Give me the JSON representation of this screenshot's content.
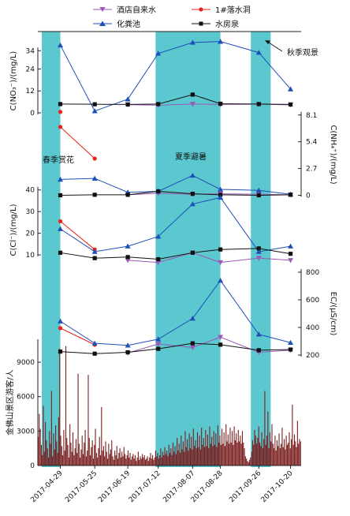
{
  "legend": [
    {
      "name": "酒店自来水",
      "color": "#9b59b6",
      "marker": "tri-down"
    },
    {
      "name": "1#落水洞",
      "color": "#e8231c",
      "marker": "circle"
    },
    {
      "name": "化粪池",
      "color": "#1f4fb8",
      "marker": "tri-up"
    },
    {
      "name": "水房泉",
      "color": "#111111",
      "marker": "square"
    }
  ],
  "annotations": {
    "spring": "春季赏花",
    "summer": "夏季避暑",
    "autumn": "秋季观景"
  },
  "chart_data": {
    "type": "line",
    "x": [
      "2017-04-29",
      "2017-05-25",
      "2017-06-19",
      "2017-07-12",
      "2017-08-07",
      "2017-08-28",
      "2017-09-26",
      "2017-10-20"
    ],
    "seasons": [
      {
        "label": "春季赏花",
        "from": "2017-04-15",
        "to": "2017-04-29"
      },
      {
        "label": "夏季避暑",
        "from": "2017-07-10",
        "to": "2017-08-28"
      },
      {
        "label": "秋季观景",
        "from": "2017-09-20",
        "to": "2017-10-05"
      }
    ],
    "panels": [
      {
        "id": "no3",
        "ylabel": "C(NO₃⁻)/(mg/L)",
        "side": "left",
        "ylim": [
          -3,
          38
        ],
        "ticks": [
          0,
          12,
          24,
          34
        ],
        "series": [
          {
            "name": "酒店自来水",
            "values": [
              null,
              null,
              4.5,
              4.2,
              4.8,
              4.6,
              4.7,
              4.4
            ]
          },
          {
            "name": "1#落水洞",
            "values": [
              0.5,
              null,
              null,
              null,
              null,
              null,
              null,
              null
            ]
          },
          {
            "name": "化粪池",
            "values": [
              37,
              1,
              7.5,
              32.5,
              38.5,
              39,
              33,
              13
            ]
          },
          {
            "name": "水房泉",
            "values": [
              4.8,
              4.7,
              4.6,
              4.8,
              10,
              5,
              4.8,
              4.6
            ]
          }
        ]
      },
      {
        "id": "nh4",
        "ylabel": "C(NH₄⁺)/(mg/L)",
        "side": "right",
        "ylim": [
          -0.2,
          8.4
        ],
        "ticks": [
          0,
          2.7,
          5.4,
          8.1
        ],
        "series": [
          {
            "name": "酒店自来水",
            "values": [
              null,
              null,
              0.05,
              0.2,
              0.1,
              0.15,
              0.1,
              0.05
            ]
          },
          {
            "name": "1#落水洞",
            "values": [
              6.9,
              3.7,
              null,
              null,
              null,
              null,
              null,
              null
            ]
          },
          {
            "name": "化粪池",
            "values": [
              1.6,
              1.7,
              0.3,
              0.4,
              2.0,
              0.6,
              0.5,
              0.1
            ]
          },
          {
            "name": "水房泉",
            "values": [
              0.0,
              0.05,
              0.05,
              0.4,
              0.15,
              0.05,
              0.0,
              0.05
            ]
          }
        ]
      },
      {
        "id": "cl",
        "ylabel": "C(Cl⁻)/(mg/L)",
        "side": "left",
        "ylim": [
          2,
          41
        ],
        "ticks": [
          10,
          20,
          30,
          40
        ],
        "series": [
          {
            "name": "酒店自来水",
            "values": [
              null,
              null,
              7.5,
              6.5,
              11,
              6.5,
              8.5,
              7.5
            ]
          },
          {
            "name": "1#落水洞",
            "values": [
              25.5,
              12.5,
              null,
              null,
              null,
              null,
              null,
              null
            ]
          },
          {
            "name": "化粪池",
            "values": [
              22,
              11.5,
              14,
              18.5,
              33.5,
              36.5,
              11.5,
              14
            ]
          },
          {
            "name": "水房泉",
            "values": [
              11,
              8.5,
              9,
              8,
              11,
              12.5,
              13,
              10.5
            ]
          }
        ]
      },
      {
        "id": "ec",
        "ylabel": "EC/(μS/cm)",
        "side": "right",
        "ylim": [
          200,
          800
        ],
        "ticks": [
          200,
          400,
          600,
          800
        ],
        "series": [
          {
            "name": "酒店自来水",
            "values": [
              null,
              null,
              215,
              280,
              255,
              330,
              220,
              235
            ]
          },
          {
            "name": "1#落水洞",
            "values": [
              395,
              275,
              null,
              null,
              null,
              null,
              null,
              null
            ]
          },
          {
            "name": "化粪池",
            "values": [
              445,
              285,
              270,
              315,
              465,
              740,
              350,
              290
            ]
          },
          {
            "name": "水房泉",
            "values": [
              225,
              210,
              220,
              245,
              285,
              275,
              235,
              240
            ]
          }
        ]
      }
    ],
    "visitors": {
      "ylabel": "金佛山景区游客/人",
      "ylim": [
        0,
        11000
      ],
      "ticks": [
        0,
        3000,
        6000,
        9000
      ],
      "values": [
        2500,
        4500,
        3200,
        1800,
        900,
        5200,
        1200,
        3800,
        2200,
        1500,
        700,
        3000,
        1900,
        6500,
        800,
        2800,
        1400,
        3500,
        2100,
        1100,
        4200,
        10200,
        2600,
        1700,
        900,
        3100,
        1300,
        10400,
        2400,
        1800,
        700,
        3600,
        2000,
        1200,
        2900,
        900,
        1500,
        2300,
        1100,
        8000,
        1900,
        700,
        1400,
        2600,
        1000,
        2000,
        3100,
        800,
        1300,
        7900,
        2400,
        900,
        1600,
        2200,
        600,
        1800,
        3200,
        1100,
        700,
        1500,
        2500,
        900,
        5100,
        1300,
        1700,
        800,
        2100,
        1200,
        600,
        1900,
        1000,
        1400,
        2200,
        800,
        500,
        1300,
        900,
        1700,
        600,
        1100,
        1500,
        700,
        1200,
        800,
        1600,
        1000,
        600,
        900,
        1300,
        700,
        1100,
        500,
        800,
        1000,
        600,
        900,
        400,
        700,
        1200,
        500,
        800,
        600,
        1000,
        700,
        900,
        500,
        600,
        800,
        400,
        700,
        1100,
        600,
        900,
        500,
        700,
        1300,
        800,
        1100,
        600,
        900,
        1500,
        700,
        1200,
        900,
        1600,
        1000,
        1300,
        800,
        1800,
        1100,
        1500,
        900,
        2000,
        1200,
        1700,
        1000,
        2400,
        1300,
        1900,
        1100,
        2600,
        1400,
        2100,
        1200,
        3000,
        1600,
        2300,
        1300,
        2800,
        1500,
        2500,
        1400,
        3200,
        1700,
        2200,
        1500,
        2900,
        1600,
        2600,
        1400,
        3300,
        1800,
        2400,
        1600,
        3100,
        1700,
        2700,
        1500,
        3400,
        1900,
        2500,
        1700,
        3000,
        1800,
        2800,
        1600,
        3500,
        2000,
        2600,
        1800,
        3200,
        1900,
        2900,
        1700,
        3600,
        2100,
        2700,
        1900,
        3300,
        2000,
        3000,
        1800,
        3400,
        2200,
        2800,
        2000,
        3100,
        2100,
        2600,
        1900,
        3000,
        2000,
        1500,
        800,
        600,
        400,
        300,
        500,
        700,
        1200,
        2200,
        1800,
        3100,
        2600,
        1900,
        2400,
        3400,
        2000,
        1700,
        2900,
        1500,
        2300,
        6500,
        1800,
        2600,
        4700,
        1500,
        2900,
        2100,
        3600,
        1900,
        1500,
        2600,
        1300,
        2200,
        1700,
        2800,
        1500,
        1900,
        3300,
        1600,
        2300,
        1400,
        2600,
        1800,
        2000,
        2900,
        1500,
        2300,
        5300,
        1800,
        2700,
        2100,
        1600,
        3900,
        1900,
        2300,
        2100
      ]
    }
  }
}
